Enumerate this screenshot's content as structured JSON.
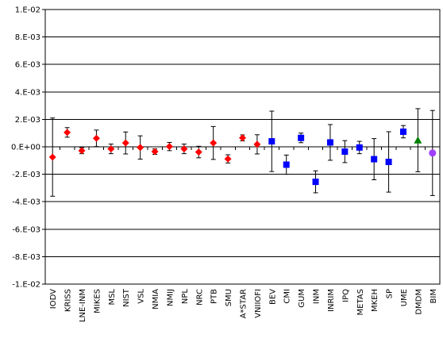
{
  "chart_data": {
    "type": "scatter",
    "title": "",
    "xlabel": "",
    "ylabel": "",
    "ylim": [
      -0.01,
      0.01
    ],
    "y_ticks": [
      0.01,
      0.008,
      0.006,
      0.004,
      0.002,
      0,
      -0.002,
      -0.004,
      -0.006,
      -0.008,
      -0.01
    ],
    "y_tick_labels": [
      "1.E-02",
      "8.E-03",
      "6.E-03",
      "4.E-03",
      "2.E-03",
      "0.E+00",
      "-2.E-03",
      "-4.E-03",
      "-6.E-03",
      "-8.E-03",
      "-1.E-02"
    ],
    "grid": "horizontal",
    "categories": [
      "IODV",
      "KRISS",
      "LNE-INM",
      "MIKES",
      "MSL",
      "NIST",
      "VSL",
      "NMIA",
      "NMIJ",
      "NPL",
      "NRC",
      "PTB",
      "SMU",
      "A*STAR",
      "VNIIOFI",
      "BEV",
      "CMI",
      "GUM",
      "INM",
      "INRIM",
      "IPQ",
      "METAS",
      "MKEH",
      "SP",
      "UME",
      "DMDM",
      "BIM"
    ],
    "series": [
      {
        "marker": "diamond",
        "color": "#ff0000",
        "points": [
          {
            "x": "IODV",
            "y": -0.00075,
            "err": 0.00285
          },
          {
            "x": "KRISS",
            "y": 0.00105,
            "err": 0.00035
          },
          {
            "x": "LNE-INM",
            "y": -0.00028,
            "err": 0.00022
          },
          {
            "x": "MIKES",
            "y": 0.00062,
            "err": 0.0006
          },
          {
            "x": "MSL",
            "y": -0.00015,
            "err": 0.00035
          },
          {
            "x": "NIST",
            "y": 0.00028,
            "err": 0.0008
          },
          {
            "x": "VSL",
            "y": -5e-05,
            "err": 0.00085
          },
          {
            "x": "NMIA",
            "y": -0.00035,
            "err": 0.0002
          },
          {
            "x": "NMIJ",
            "y": 2e-05,
            "err": 0.0003
          },
          {
            "x": "NPL",
            "y": -0.00015,
            "err": 0.00035
          },
          {
            "x": "NRC",
            "y": -0.00038,
            "err": 0.00042
          },
          {
            "x": "PTB",
            "y": 0.00028,
            "err": 0.0012
          },
          {
            "x": "SMU",
            "y": -0.00088,
            "err": 0.0003
          },
          {
            "x": "A*STAR",
            "y": 0.00065,
            "err": 0.00022
          },
          {
            "x": "VNIIOFI",
            "y": 0.00018,
            "err": 0.0007
          }
        ]
      },
      {
        "marker": "square",
        "color": "#0000ff",
        "points": [
          {
            "x": "BEV",
            "y": 0.0004,
            "err": 0.0022
          },
          {
            "x": "CMI",
            "y": -0.0013,
            "err": 0.0007
          },
          {
            "x": "GUM",
            "y": 0.00065,
            "err": 0.00035
          },
          {
            "x": "INM",
            "y": -0.00255,
            "err": 0.0008
          },
          {
            "x": "INRIM",
            "y": 0.00032,
            "err": 0.0013
          },
          {
            "x": "IPQ",
            "y": -0.00035,
            "err": 0.0008
          },
          {
            "x": "METAS",
            "y": -5e-05,
            "err": 0.00045
          },
          {
            "x": "MKEH",
            "y": -0.0009,
            "err": 0.0015
          },
          {
            "x": "SP",
            "y": -0.0011,
            "err": 0.0022
          },
          {
            "x": "UME",
            "y": 0.0011,
            "err": 0.00045
          }
        ]
      },
      {
        "marker": "triangle",
        "color": "#008000",
        "points": [
          {
            "x": "DMDM",
            "y": 0.00048,
            "err": 0.0023
          }
        ]
      },
      {
        "marker": "circle",
        "color": "#a040ff",
        "points": [
          {
            "x": "BIM",
            "y": -0.00045,
            "err": 0.0031
          }
        ]
      }
    ]
  }
}
